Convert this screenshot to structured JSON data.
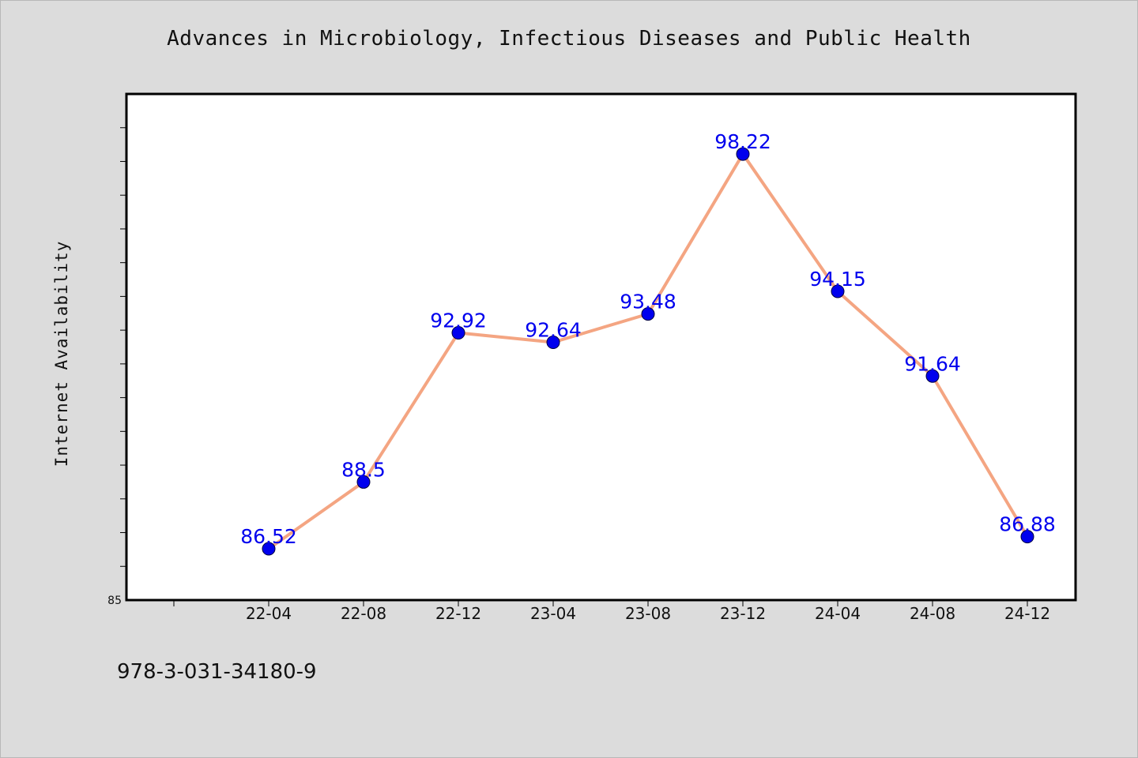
{
  "title": "Advances in Microbiology, Infectious Diseases and Public Health",
  "footnote": "978-3-031-34180-9",
  "colors": {
    "background": "#dcdcdc",
    "plot_background": "#ffffff",
    "line": "#f4a582",
    "marker": "#0000ee",
    "data_label": "#0000ee"
  },
  "chart_data": {
    "type": "line",
    "title": "Advances in Microbiology, Infectious Diseases and Public Health",
    "xlabel": "",
    "ylabel": "Internet Availability",
    "categories": [
      "22-04",
      "22-08",
      "22-12",
      "23-04",
      "23-08",
      "23-12",
      "24-04",
      "24-08",
      "24-12"
    ],
    "series": [
      {
        "values": [
          86.52,
          88.5,
          92.92,
          92.64,
          93.48,
          98.22,
          94.15,
          91.64,
          86.88
        ]
      }
    ],
    "data_labels": [
      "86.52",
      "88.5",
      "92.92",
      "92.64",
      "93.48",
      "98.22",
      "94.15",
      "91.64",
      "86.88"
    ],
    "ylim": [
      85,
      100
    ],
    "y_tick_labels": [
      "85"
    ],
    "grid": false,
    "legend": "none"
  }
}
